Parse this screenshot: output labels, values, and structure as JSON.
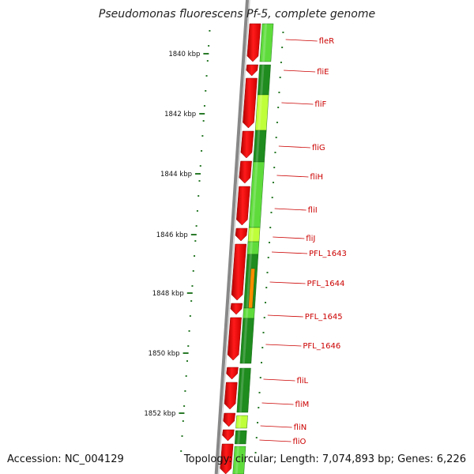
{
  "title": "Pseudomonas fluorescens Pf-5, complete genome",
  "accession": "Accession: NC_004129",
  "topology": "Topology: circular; Length: 7,074,893 bp; Genes: 6,226",
  "scale_labels": [
    "1840 kbp",
    "1842 kbp",
    "1844 kbp",
    "1846 kbp",
    "1848 kbp",
    "1850 kbp",
    "1852 kbp"
  ],
  "gene_labels": [
    "fleR",
    "fliE",
    "fliF",
    "fliG",
    "fliH",
    "fliI",
    "fliJ",
    "PFL_1643",
    "PFL_1644",
    "PFL_1645",
    "PFL_1646",
    "fliL",
    "fliM",
    "fliN",
    "fliO"
  ],
  "colors": {
    "cds_forward": "#ff0000",
    "cds_dark_green": "#1e8c1e",
    "cds_light_green": "#5fdc3c",
    "cds_yellow_green": "#bfff3a",
    "cds_orange": "#ff8c00",
    "label_red": "#cc0000",
    "backbone": "#888888",
    "tick_green": "#2a7a2a"
  }
}
